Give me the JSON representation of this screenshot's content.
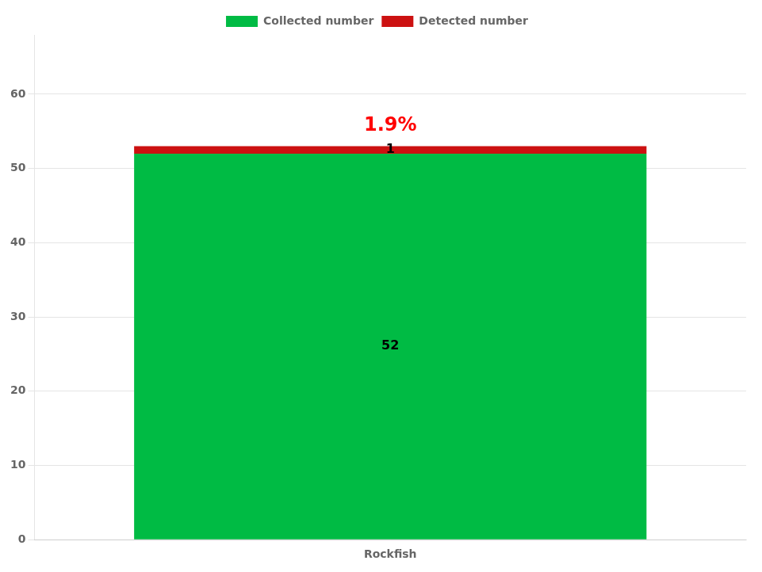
{
  "chart_data": {
    "type": "bar",
    "categories": [
      "Rockfish"
    ],
    "series": [
      {
        "name": "Collected number",
        "color": "#00BB44",
        "values": [
          52
        ]
      },
      {
        "name": "Detected number",
        "color": "#CC1111",
        "values": [
          1
        ]
      }
    ],
    "stacked": true,
    "data_labels": true,
    "annotations": [
      {
        "text": "1.9%",
        "color": "red"
      }
    ],
    "ylim": [
      0,
      68
    ],
    "yticks": [
      0,
      10,
      20,
      30,
      40,
      50,
      60
    ],
    "grid": true,
    "legend": "top"
  }
}
